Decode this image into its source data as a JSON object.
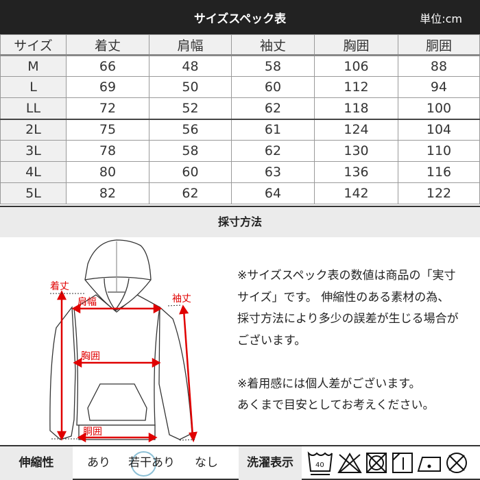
{
  "header": {
    "title": "サイズスペック表",
    "unit": "単位:cm"
  },
  "table": {
    "columns": [
      "サイズ",
      "着丈",
      "肩幅",
      "袖丈",
      "胸囲",
      "胴囲"
    ],
    "rows": [
      [
        "M",
        "66",
        "48",
        "58",
        "106",
        "88"
      ],
      [
        "L",
        "69",
        "50",
        "60",
        "112",
        "94"
      ],
      [
        "LL",
        "72",
        "52",
        "62",
        "118",
        "100"
      ],
      [
        "2L",
        "75",
        "56",
        "61",
        "124",
        "104"
      ],
      [
        "3L",
        "78",
        "58",
        "62",
        "130",
        "110"
      ],
      [
        "4L",
        "80",
        "60",
        "63",
        "136",
        "116"
      ],
      [
        "5L",
        "82",
        "62",
        "64",
        "142",
        "122"
      ]
    ]
  },
  "measure": {
    "title": "採寸方法",
    "labels": {
      "length": "着丈",
      "shoulder": "肩幅",
      "sleeve": "袖丈",
      "chest": "胸囲",
      "waist": "胴囲"
    },
    "notes": [
      "※サイズスペック表の数値は商品の「実寸",
      "サイズ」です。 伸縮性のある素材の為、",
      "採寸方法により多少の誤差が生じる場合が",
      "ございます。",
      "",
      "※着用感には個人差がございます。",
      "あくまで目安としてお考えください。"
    ]
  },
  "stretch": {
    "label": "伸縮性",
    "options": [
      "あり",
      "若干あり",
      "なし"
    ],
    "selected": "若干あり"
  },
  "laundry": {
    "label": "洗濯表示",
    "wash_temp": "40",
    "icons": [
      "wash-40-icon",
      "no-bleach-icon",
      "no-tumble-dry-icon",
      "line-dry-shade-icon",
      "iron-low-icon",
      "no-dry-clean-icon"
    ]
  },
  "colors": {
    "accent": "#e00000",
    "selection": "#8cc0d6",
    "header": "#222222"
  }
}
